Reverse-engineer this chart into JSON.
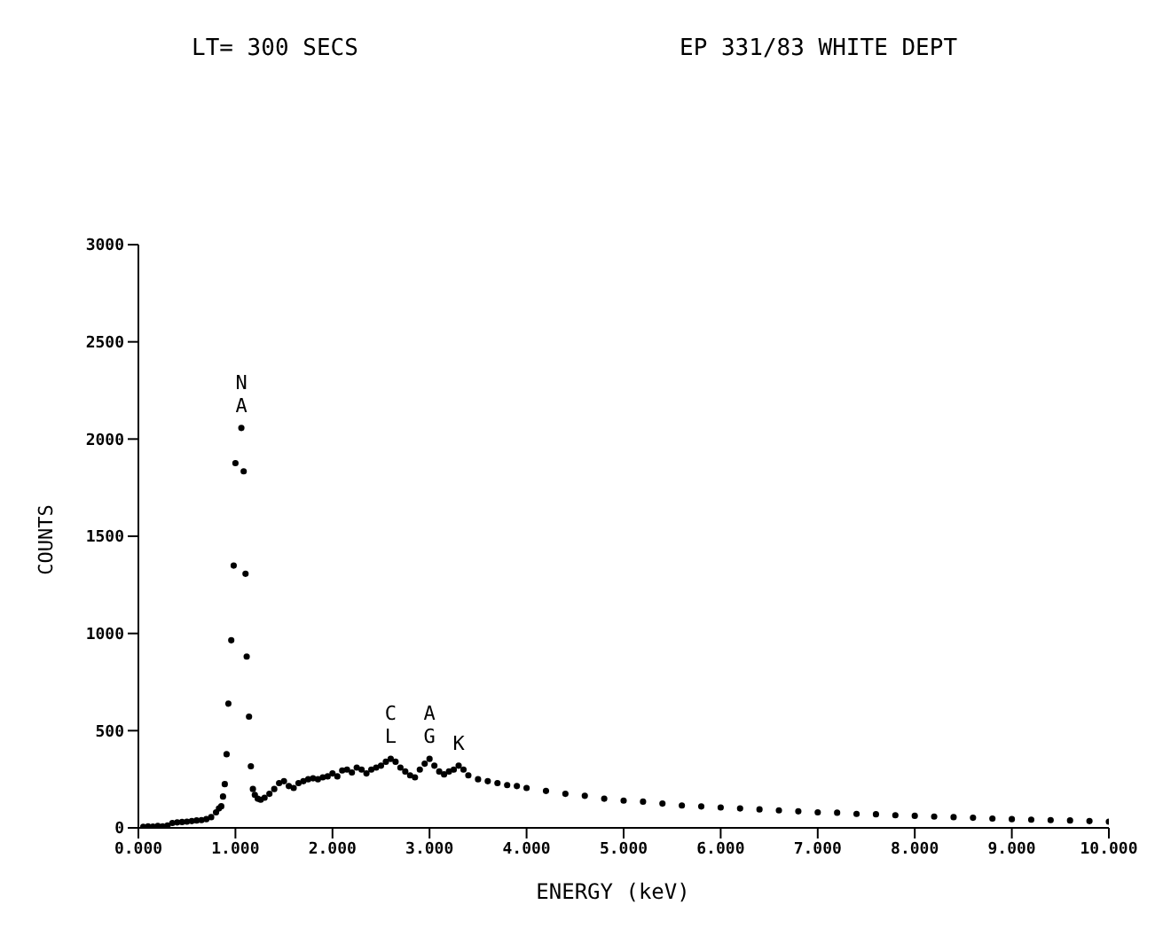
{
  "chart_data": {
    "type": "scatter",
    "title": "LT= 300 SECS",
    "subtitle": "EP 331/83 WHITE DEPT",
    "xlabel": "ENERGY (keV)",
    "ylabel": "COUNTS",
    "x": [
      0.05,
      0.1,
      0.15,
      0.2,
      0.25,
      0.3,
      0.35,
      0.4,
      0.45,
      0.5,
      0.55,
      0.6,
      0.65,
      0.7,
      0.75,
      0.8,
      0.83,
      0.854,
      0.872,
      0.89,
      0.909,
      0.927,
      0.957,
      0.982,
      1.0,
      1.061,
      1.085,
      1.104,
      1.116,
      1.14,
      1.159,
      1.18,
      1.2,
      1.23,
      1.26,
      1.3,
      1.35,
      1.4,
      1.45,
      1.5,
      1.55,
      1.6,
      1.65,
      1.7,
      1.75,
      1.8,
      1.85,
      1.9,
      1.95,
      2.0,
      2.05,
      2.1,
      2.15,
      2.2,
      2.25,
      2.3,
      2.35,
      2.4,
      2.45,
      2.5,
      2.55,
      2.6,
      2.65,
      2.7,
      2.75,
      2.8,
      2.85,
      2.9,
      2.95,
      3.0,
      3.05,
      3.1,
      3.15,
      3.2,
      3.25,
      3.3,
      3.35,
      3.4,
      3.5,
      3.6,
      3.7,
      3.8,
      3.9,
      4.0,
      4.2,
      4.4,
      4.6,
      4.8,
      5.0,
      5.2,
      5.4,
      5.6,
      5.8,
      6.0,
      6.2,
      6.4,
      6.6,
      6.8,
      7.0,
      7.2,
      7.4,
      7.6,
      7.8,
      8.0,
      8.2,
      8.4,
      8.6,
      8.8,
      9.0,
      9.2,
      9.4,
      9.6,
      9.8,
      10.0
    ],
    "series": [
      {
        "color": "#000000",
        "values": [
          5,
          8,
          6,
          10,
          8,
          12,
          25,
          28,
          30,
          32,
          35,
          38,
          40,
          45,
          55,
          80,
          100,
          111,
          161,
          225,
          379,
          639,
          965,
          1349,
          1876,
          2057,
          1834,
          1307,
          881,
          572,
          317,
          200,
          170,
          150,
          145,
          155,
          175,
          200,
          230,
          240,
          215,
          205,
          230,
          240,
          250,
          255,
          250,
          260,
          265,
          280,
          265,
          295,
          300,
          285,
          310,
          300,
          280,
          300,
          310,
          320,
          340,
          355,
          340,
          310,
          290,
          270,
          260,
          300,
          330,
          355,
          320,
          290,
          275,
          290,
          300,
          320,
          300,
          270,
          250,
          240,
          230,
          220,
          215,
          205,
          190,
          175,
          165,
          150,
          140,
          135,
          125,
          115,
          110,
          105,
          100,
          95,
          90,
          85,
          80,
          78,
          72,
          70,
          65,
          62,
          58,
          55,
          52,
          48,
          45,
          42,
          40,
          38,
          35,
          32
        ]
      }
    ],
    "xlim": [
      0,
      10
    ],
    "xticks": [
      {
        "value": 0,
        "label": "0.000"
      },
      {
        "value": 1,
        "label": "1.000"
      },
      {
        "value": 2,
        "label": "2.000"
      },
      {
        "value": 3,
        "label": "3.000"
      },
      {
        "value": 4,
        "label": "4.000"
      },
      {
        "value": 5,
        "label": "5.000"
      },
      {
        "value": 6,
        "label": "6.000"
      },
      {
        "value": 7,
        "label": "7.000"
      },
      {
        "value": 8,
        "label": "8.000"
      },
      {
        "value": 9,
        "label": "9.000"
      },
      {
        "value": 10,
        "label": "10.000"
      }
    ],
    "ylim": [
      0,
      3000
    ],
    "yticks": [
      0,
      500,
      1000,
      1500,
      2000,
      2500,
      3000
    ],
    "marker": "circle",
    "annotations": [
      {
        "text": "NA",
        "x": 1.061,
        "y": 2057
      },
      {
        "text": "CL",
        "x": 2.6,
        "y": 355
      },
      {
        "text": "AG",
        "x": 3.0,
        "y": 355
      },
      {
        "text": "K",
        "x": 3.3,
        "y": 320
      }
    ]
  }
}
